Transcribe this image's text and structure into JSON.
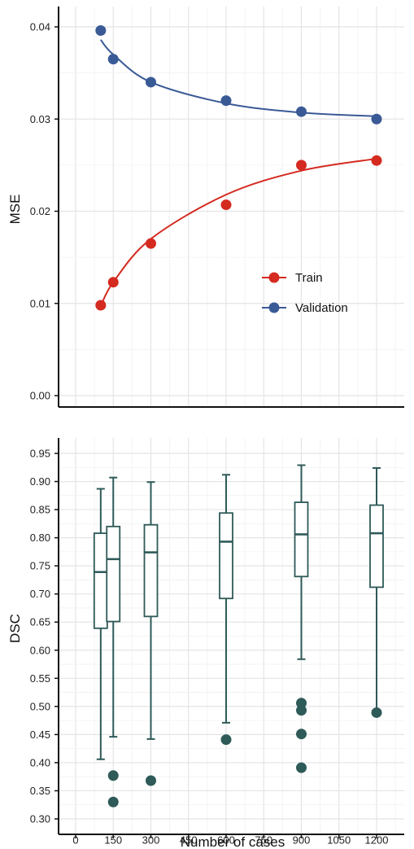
{
  "chart_data": [
    {
      "type": "line",
      "title": "",
      "xlabel": "",
      "ylabel": "MSE",
      "xlim": [
        0,
        1300
      ],
      "ylim": [
        0,
        0.04
      ],
      "x_ticks": [
        0,
        150,
        300,
        450,
        600,
        750,
        900,
        1050,
        1200
      ],
      "y_ticks": [
        0.0,
        0.01,
        0.02,
        0.03,
        0.04
      ],
      "y_tick_labels": [
        "0.00",
        "0.01",
        "0.02",
        "0.03",
        "0.04"
      ],
      "grid": true,
      "legend_position": "right",
      "series": [
        {
          "name": "Train",
          "color": "#d42a20",
          "x": [
            100,
            150,
            300,
            600,
            900,
            1200
          ],
          "y": [
            0.0098,
            0.0123,
            0.0165,
            0.0207,
            0.025,
            0.0255
          ],
          "fit": [
            0.0097,
            0.0123,
            0.017,
            0.0218,
            0.0244,
            0.0257
          ]
        },
        {
          "name": "Validation",
          "color": "#3a5a96",
          "x": [
            100,
            150,
            300,
            600,
            900,
            1200
          ],
          "y": [
            0.0396,
            0.0365,
            0.034,
            0.032,
            0.0308,
            0.03
          ],
          "fit": [
            0.0386,
            0.037,
            0.034,
            0.0317,
            0.0307,
            0.0303
          ]
        }
      ]
    },
    {
      "type": "box",
      "title": "",
      "xlabel": "Number of cases",
      "ylabel": "DSC",
      "xlim": [
        0,
        1300
      ],
      "ylim": [
        0.29,
        0.97
      ],
      "x_ticks": [
        0,
        150,
        300,
        450,
        600,
        750,
        900,
        1050,
        1200
      ],
      "x_tick_labels": [
        "0",
        "150",
        "300",
        "450",
        "600",
        "750",
        "900",
        "1050",
        "1200"
      ],
      "y_ticks": [
        0.3,
        0.35,
        0.4,
        0.45,
        0.5,
        0.55,
        0.6,
        0.65,
        0.7,
        0.75,
        0.8,
        0.85,
        0.9,
        0.95
      ],
      "y_tick_labels": [
        "0.30",
        "0.35",
        "0.40",
        "0.45",
        "0.50",
        "0.55",
        "0.60",
        "0.65",
        "0.70",
        "0.75",
        "0.80",
        "0.85",
        "0.90",
        "0.95"
      ],
      "grid": true,
      "color": "#2e5a58",
      "boxes": [
        {
          "x": 100,
          "whisker_low": 0.406,
          "q1": 0.639,
          "median": 0.739,
          "q3": 0.808,
          "whisker_high": 0.887,
          "outliers": []
        },
        {
          "x": 150,
          "whisker_low": 0.446,
          "q1": 0.651,
          "median": 0.762,
          "q3": 0.82,
          "whisker_high": 0.907,
          "outliers": [
            0.377,
            0.33
          ]
        },
        {
          "x": 300,
          "whisker_low": 0.442,
          "q1": 0.66,
          "median": 0.774,
          "q3": 0.823,
          "whisker_high": 0.899,
          "outliers": [
            0.368
          ]
        },
        {
          "x": 600,
          "whisker_low": 0.471,
          "q1": 0.692,
          "median": 0.793,
          "q3": 0.844,
          "whisker_high": 0.912,
          "outliers": [
            0.441
          ]
        },
        {
          "x": 900,
          "whisker_low": 0.584,
          "q1": 0.731,
          "median": 0.806,
          "q3": 0.863,
          "whisker_high": 0.929,
          "outliers": [
            0.506,
            0.493,
            0.451,
            0.391
          ]
        },
        {
          "x": 1200,
          "whisker_low": 0.49,
          "q1": 0.712,
          "median": 0.808,
          "q3": 0.858,
          "whisker_high": 0.924,
          "outliers": [
            0.489
          ]
        }
      ]
    }
  ]
}
